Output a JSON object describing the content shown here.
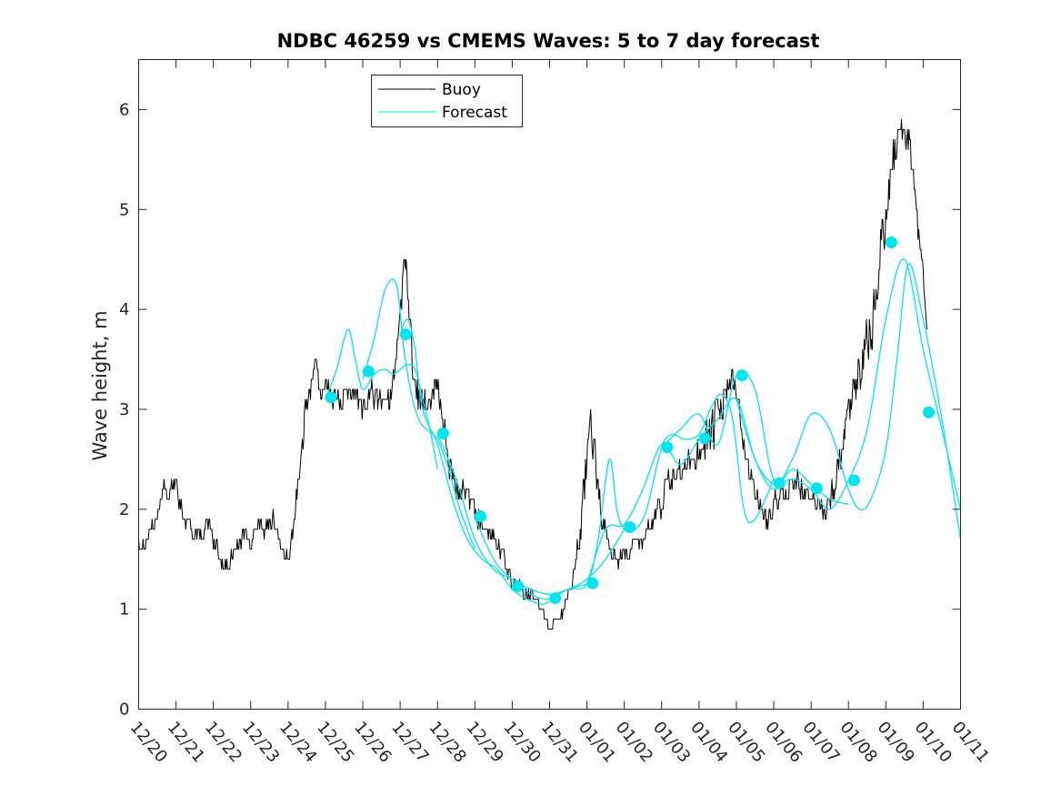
{
  "chart_data": {
    "type": "line",
    "title": "NDBC 46259 vs CMEMS Waves: 5 to 7 day forecast",
    "xlabel": "",
    "ylabel": "Wave height, m",
    "xlim": [
      0,
      22
    ],
    "ylim": [
      0,
      6.5
    ],
    "x_unit": "days since 12/20",
    "categories": [
      "12/20",
      "12/21",
      "12/22",
      "12/23",
      "12/24",
      "12/25",
      "12/26",
      "12/27",
      "12/28",
      "12/29",
      "12/30",
      "12/31",
      "01/01",
      "01/02",
      "01/03",
      "01/04",
      "01/05",
      "01/06",
      "01/07",
      "01/08",
      "01/09",
      "01/10",
      "01/11"
    ],
    "yticks": [
      0,
      1,
      2,
      3,
      4,
      5,
      6
    ],
    "legend": {
      "position": "top-center",
      "entries": [
        "Buoy",
        "Forecast"
      ]
    },
    "colors": {
      "buoy": "#000000",
      "forecast": "#00e5ee",
      "axis": "#262626"
    },
    "series": [
      {
        "name": "Buoy",
        "style": "noisy-line",
        "x": [
          0,
          0.25,
          0.5,
          0.65,
          0.8,
          1.0,
          1.15,
          1.3,
          1.5,
          1.7,
          1.85,
          2.0,
          2.2,
          2.4,
          2.6,
          2.8,
          3.0,
          3.2,
          3.4,
          3.6,
          3.75,
          3.9,
          4.0,
          4.1,
          4.2,
          4.35,
          4.5,
          4.6,
          4.75,
          4.9,
          5.0,
          5.2,
          5.4,
          5.6,
          5.8,
          6.0,
          6.2,
          6.4,
          6.6,
          6.8,
          6.9,
          7.0,
          7.1,
          7.2,
          7.3,
          7.45,
          7.6,
          7.75,
          7.9,
          8.0,
          8.1,
          8.2,
          8.35,
          8.5,
          8.75,
          9.0,
          9.2,
          9.4,
          9.6,
          9.8,
          10.0,
          10.2,
          10.4,
          10.6,
          10.8,
          11.0,
          11.2,
          11.4,
          11.6,
          11.8,
          11.9,
          12.0,
          12.1,
          12.2,
          12.3,
          12.4,
          12.5,
          12.6,
          12.7,
          12.8,
          13.0,
          13.2,
          13.4,
          13.6,
          13.8,
          14.0,
          14.1,
          14.2,
          14.4,
          14.6,
          14.8,
          15.0,
          15.2,
          15.4,
          15.6,
          15.8,
          16.0,
          16.1,
          16.2,
          16.4,
          16.6,
          16.8,
          17.0,
          17.2,
          17.4,
          17.6,
          17.8,
          18.0,
          18.2,
          18.4,
          18.6,
          18.8,
          19.0,
          19.2,
          19.4,
          19.6,
          19.8,
          20.0,
          20.2,
          20.4,
          20.6,
          20.8,
          20.9,
          21.0,
          21.1,
          21.2,
          21.3
        ],
        "y": [
          1.6,
          1.7,
          1.9,
          2.2,
          2.1,
          2.3,
          2.0,
          1.9,
          1.8,
          1.75,
          1.9,
          1.7,
          1.5,
          1.45,
          1.6,
          1.7,
          1.65,
          1.85,
          1.8,
          1.9,
          1.7,
          1.6,
          1.5,
          1.7,
          2.0,
          2.6,
          3.1,
          3.2,
          3.3,
          3.1,
          3.3,
          3.1,
          3.05,
          3.2,
          3.1,
          3.0,
          3.1,
          3.15,
          3.0,
          3.2,
          3.4,
          3.9,
          4.4,
          4.2,
          3.6,
          3.2,
          3.0,
          3.1,
          3.25,
          3.3,
          3.0,
          2.8,
          2.4,
          2.2,
          2.15,
          2.0,
          1.85,
          1.8,
          1.7,
          1.5,
          1.3,
          1.2,
          1.15,
          1.1,
          1.0,
          0.85,
          0.9,
          1.0,
          1.3,
          1.7,
          2.1,
          2.5,
          2.8,
          2.6,
          2.2,
          1.9,
          1.8,
          1.6,
          1.55,
          1.5,
          1.55,
          1.6,
          1.7,
          1.75,
          1.9,
          2.0,
          2.2,
          2.3,
          2.35,
          2.4,
          2.5,
          2.6,
          2.7,
          2.8,
          3.0,
          3.3,
          3.1,
          2.9,
          2.6,
          2.3,
          2.05,
          1.9,
          2.0,
          2.15,
          2.2,
          2.3,
          2.2,
          2.1,
          2.05,
          2.0,
          2.2,
          2.5,
          2.9,
          3.2,
          3.5,
          3.8,
          4.3,
          4.9,
          5.5,
          5.9,
          5.7,
          5.2,
          4.6,
          4.2,
          3.9,
          3.7,
          3.4
        ],
        "amplitude": [
          0.12,
          0.1,
          0.15,
          0.15,
          0.12,
          0.15,
          0.15,
          0.12,
          0.12,
          0.1,
          0.12,
          0.12,
          0.1,
          0.1,
          0.12,
          0.12,
          0.12,
          0.12,
          0.1,
          0.12,
          0.1,
          0.1,
          0.1,
          0.1,
          0.15,
          0.2,
          0.2,
          0.15,
          0.25,
          0.2,
          0.2,
          0.15,
          0.15,
          0.15,
          0.15,
          0.15,
          0.2,
          0.2,
          0.15,
          0.2,
          0.3,
          0.35,
          0.25,
          0.35,
          0.3,
          0.3,
          0.25,
          0.3,
          0.25,
          0.2,
          0.25,
          0.2,
          0.2,
          0.15,
          0.15,
          0.15,
          0.15,
          0.12,
          0.12,
          0.12,
          0.12,
          0.1,
          0.08,
          0.08,
          0.08,
          0.08,
          0.08,
          0.1,
          0.15,
          0.2,
          0.25,
          0.35,
          0.3,
          0.25,
          0.2,
          0.15,
          0.15,
          0.12,
          0.12,
          0.12,
          0.12,
          0.12,
          0.12,
          0.15,
          0.15,
          0.2,
          0.2,
          0.2,
          0.2,
          0.2,
          0.2,
          0.25,
          0.3,
          0.35,
          0.3,
          0.25,
          0.25,
          0.2,
          0.15,
          0.15,
          0.15,
          0.15,
          0.15,
          0.15,
          0.15,
          0.15,
          0.15,
          0.12,
          0.12,
          0.15,
          0.2,
          0.25,
          0.3,
          0.3,
          0.35,
          0.4,
          0.45,
          0.35,
          0.3,
          0.3,
          0.35,
          0.3,
          0.25,
          0.25,
          0.2
        ]
      },
      {
        "name": "Forecast",
        "style": "line",
        "runs": [
          {
            "x": [
              5.0,
              5.3,
              5.6,
              5.8,
              6.0,
              6.3,
              6.6,
              6.8,
              7.0,
              7.2,
              7.4,
              7.6,
              7.8,
              8.0
            ],
            "y": [
              3.1,
              3.4,
              3.8,
              3.5,
              3.2,
              3.35,
              3.4,
              3.35,
              3.4,
              3.45,
              3.4,
              3.1,
              2.8,
              2.4
            ]
          },
          {
            "x": [
              6.0,
              6.3,
              6.6,
              6.9,
              7.1,
              7.3,
              7.5,
              7.7,
              8.0,
              8.3,
              8.6,
              9.0
            ],
            "y": [
              3.3,
              3.7,
              4.2,
              4.25,
              3.6,
              3.15,
              2.9,
              2.8,
              2.7,
              2.4,
              2.0,
              1.6
            ]
          },
          {
            "x": [
              7.0,
              7.2,
              7.4,
              7.6,
              8.0,
              8.4,
              8.8,
              9.2,
              9.6,
              10.0,
              10.4,
              10.8,
              11.0
            ],
            "y": [
              3.75,
              3.9,
              3.6,
              3.0,
              2.65,
              2.1,
              1.7,
              1.5,
              1.4,
              1.2,
              1.1,
              1.05,
              1.08
            ]
          },
          {
            "x": [
              8.0,
              8.5,
              9.0,
              9.5,
              10.0,
              10.5,
              11.0,
              11.5,
              12.0
            ],
            "y": [
              2.75,
              2.3,
              1.7,
              1.4,
              1.3,
              1.15,
              1.1,
              1.2,
              1.25
            ]
          },
          {
            "x": [
              9.0,
              9.5,
              10.0,
              10.5,
              11.0,
              11.5,
              12.0,
              12.5,
              13.0
            ],
            "y": [
              1.92,
              1.5,
              1.3,
              1.2,
              1.15,
              1.2,
              1.3,
              1.5,
              1.8
            ]
          },
          {
            "x": [
              11.0,
              11.5,
              12.0,
              12.3,
              12.6,
              12.8,
              13.0,
              13.3,
              13.6,
              14.0,
              14.3,
              14.6,
              15.0,
              15.3,
              15.6,
              15.9,
              16.2,
              16.5,
              17.0
            ],
            "y": [
              1.1,
              1.2,
              1.25,
              1.7,
              2.5,
              2.0,
              1.8,
              1.8,
              2.0,
              2.62,
              2.75,
              2.7,
              2.75,
              3.0,
              3.15,
              2.9,
              2.0,
              1.9,
              2.3
            ]
          },
          {
            "x": [
              12.0,
              12.5,
              13.0,
              13.5,
              14.0,
              14.5,
              15.0,
              15.5,
              16.0,
              16.5,
              17.0,
              17.5,
              18.0,
              18.5,
              19.0
            ],
            "y": [
              1.25,
              1.8,
              1.85,
              2.2,
              2.65,
              2.45,
              2.7,
              2.9,
              3.1,
              2.5,
              2.2,
              2.4,
              2.25,
              2.1,
              2.05
            ]
          },
          {
            "x": [
              14.0,
              14.5,
              15.0,
              15.5,
              16.0,
              16.5,
              17.0,
              17.5,
              18.0,
              18.5,
              19.0,
              19.3,
              19.6,
              20.0,
              20.3,
              20.6,
              21.0,
              21.5,
              22.0
            ],
            "y": [
              2.62,
              2.8,
              2.95,
              2.65,
              3.34,
              3.2,
              2.3,
              2.5,
              2.95,
              2.8,
              2.2,
              2.0,
              2.1,
              2.6,
              3.5,
              4.45,
              3.9,
              2.9,
              1.7
            ]
          },
          {
            "x": [
              16.0,
              16.5,
              17.0,
              17.5,
              18.0,
              18.5,
              19.0,
              19.5,
              20.0,
              20.5,
              21.0,
              21.5,
              22.0
            ],
            "y": [
              3.1,
              2.5,
              2.25,
              2.3,
              2.2,
              2.0,
              2.29,
              2.8,
              3.9,
              4.5,
              3.6,
              2.8,
              2.0
            ]
          }
        ]
      },
      {
        "name": "Forecast markers",
        "style": "marker",
        "x": [
          5.15,
          6.15,
          7.15,
          8.15,
          9.15,
          10.15,
          11.15,
          12.15,
          13.15,
          14.15,
          15.15,
          16.15,
          17.15,
          18.15,
          19.15,
          20.15,
          21.15
        ],
        "y": [
          3.12,
          3.38,
          3.75,
          2.76,
          1.93,
          1.23,
          1.11,
          1.26,
          1.82,
          2.62,
          2.71,
          3.34,
          2.26,
          2.21,
          2.29,
          4.67,
          2.97
        ]
      }
    ]
  }
}
